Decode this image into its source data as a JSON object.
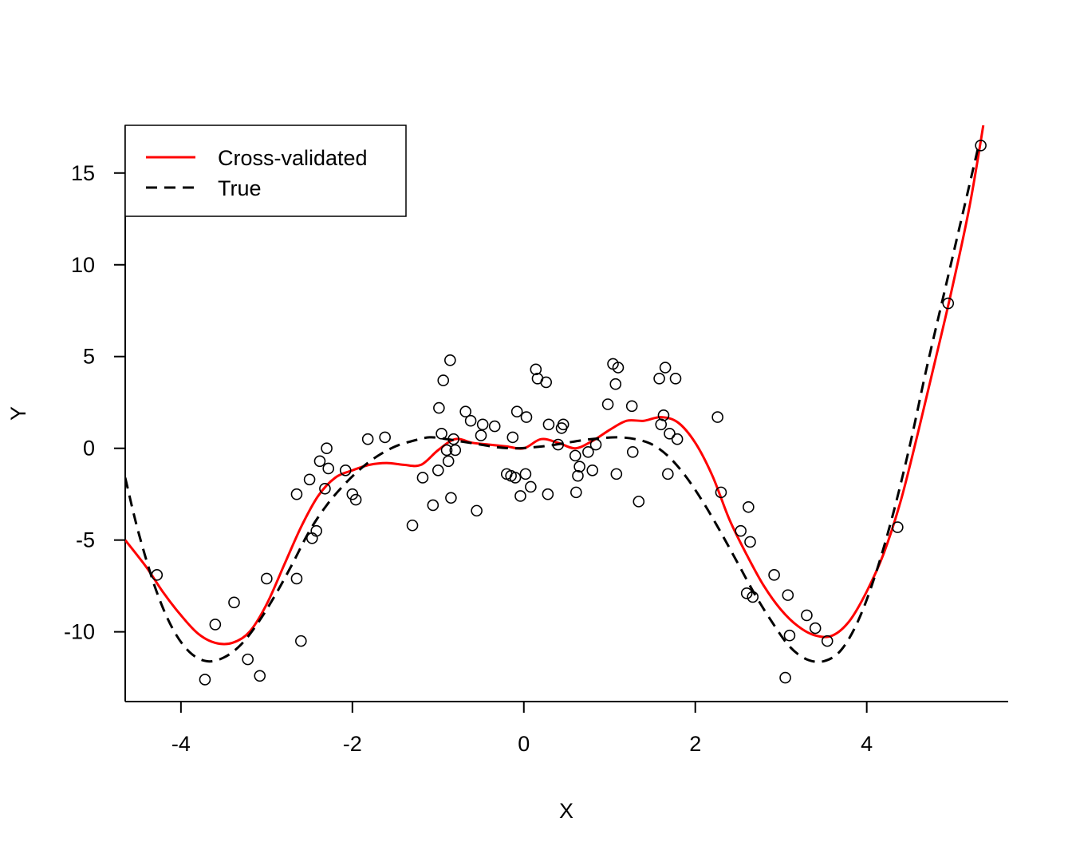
{
  "chart_data": {
    "type": "scatter",
    "title": "",
    "xlabel": "X",
    "ylabel": "Y",
    "xlim": [
      -4.65,
      5.65
    ],
    "ylim": [
      -13.8,
      17.6
    ],
    "xticks": [
      -4,
      -2,
      0,
      2,
      4
    ],
    "xtick_labels": [
      "-4",
      "-2",
      "0",
      "2",
      "4"
    ],
    "yticks": [
      -10,
      -5,
      0,
      5,
      10,
      15
    ],
    "ytick_labels": [
      "-10",
      "-5",
      "0",
      "5",
      "10",
      "15"
    ],
    "grid": false,
    "legend_position": "top-left",
    "series": [
      {
        "name": "Cross-validated",
        "kind": "line",
        "style": "solid",
        "color": "#ff0000",
        "x": [
          -4.65,
          -4.4,
          -4.2,
          -4.0,
          -3.8,
          -3.6,
          -3.4,
          -3.2,
          -3.0,
          -2.8,
          -2.6,
          -2.4,
          -2.2,
          -2.0,
          -1.8,
          -1.6,
          -1.4,
          -1.2,
          -1.0,
          -0.8,
          -0.6,
          -0.4,
          -0.2,
          0.0,
          0.2,
          0.4,
          0.6,
          0.8,
          1.0,
          1.2,
          1.4,
          1.6,
          1.8,
          2.0,
          2.2,
          2.4,
          2.6,
          2.8,
          3.0,
          3.2,
          3.4,
          3.6,
          3.8,
          4.0,
          4.2,
          4.4,
          4.6,
          4.8,
          5.0,
          5.2,
          5.36
        ],
        "y": [
          -5.0,
          -6.5,
          -7.9,
          -9.1,
          -10.1,
          -10.6,
          -10.6,
          -10.0,
          -8.5,
          -6.4,
          -4.3,
          -2.6,
          -1.6,
          -1.2,
          -0.9,
          -0.8,
          -0.9,
          -0.9,
          -0.1,
          0.5,
          0.3,
          0.2,
          0.1,
          0.0,
          0.5,
          0.3,
          0.0,
          0.4,
          1.0,
          1.5,
          1.5,
          1.7,
          1.4,
          0.3,
          -1.5,
          -3.9,
          -5.8,
          -7.5,
          -8.8,
          -9.7,
          -10.2,
          -10.2,
          -9.4,
          -7.8,
          -5.7,
          -2.8,
          0.9,
          4.8,
          8.8,
          13.2,
          17.6
        ]
      },
      {
        "name": "True",
        "kind": "line",
        "style": "dashed",
        "color": "#000000",
        "x": [
          -4.65,
          -4.5,
          -4.3,
          -4.1,
          -3.9,
          -3.7,
          -3.5,
          -3.3,
          -3.1,
          -2.9,
          -2.7,
          -2.5,
          -2.3,
          -2.1,
          -1.9,
          -1.7,
          -1.5,
          -1.3,
          -1.1,
          -0.9,
          -0.7,
          -0.5,
          -0.3,
          -0.1,
          0.1,
          0.3,
          0.5,
          0.7,
          0.9,
          1.1,
          1.3,
          1.5,
          1.7,
          1.9,
          2.1,
          2.3,
          2.5,
          2.7,
          2.9,
          3.1,
          3.3,
          3.5,
          3.7,
          3.9,
          4.1,
          4.3,
          4.5,
          4.7,
          4.9,
          5.1,
          5.3
        ],
        "y": [
          -1.6,
          -4.5,
          -7.6,
          -9.8,
          -11.1,
          -11.6,
          -11.4,
          -10.7,
          -9.5,
          -8.0,
          -6.3,
          -4.5,
          -3.1,
          -2.0,
          -1.1,
          -0.4,
          0.1,
          0.4,
          0.6,
          0.5,
          0.35,
          0.2,
          0.05,
          0.0,
          0.05,
          0.15,
          0.3,
          0.45,
          0.55,
          0.6,
          0.5,
          0.2,
          -0.5,
          -1.6,
          -3.0,
          -4.6,
          -6.3,
          -8.0,
          -9.5,
          -10.8,
          -11.5,
          -11.6,
          -11.0,
          -9.4,
          -6.9,
          -3.7,
          0.1,
          4.4,
          8.4,
          12.4,
          16.4
        ]
      },
      {
        "name": "",
        "kind": "points",
        "color": "#000000",
        "x": [
          -4.28,
          -3.72,
          -3.6,
          -3.38,
          -3.22,
          -3.08,
          -3.0,
          -2.65,
          -2.65,
          -2.6,
          -2.5,
          -2.47,
          -2.42,
          -2.38,
          -2.32,
          -2.3,
          -2.28,
          -2.08,
          -2.0,
          -1.96,
          -1.82,
          -1.62,
          -1.3,
          -1.18,
          -1.06,
          -1.0,
          -0.99,
          -0.96,
          -0.94,
          -0.9,
          -0.88,
          -0.86,
          -0.85,
          -0.82,
          -0.8,
          -0.68,
          -0.62,
          -0.55,
          -0.5,
          -0.48,
          -0.34,
          -0.2,
          -0.15,
          -0.13,
          -0.1,
          -0.08,
          -0.04,
          0.02,
          0.03,
          0.08,
          0.14,
          0.16,
          0.26,
          0.28,
          0.29,
          0.4,
          0.44,
          0.46,
          0.6,
          0.61,
          0.63,
          0.65,
          0.75,
          0.8,
          0.84,
          0.98,
          1.04,
          1.07,
          1.08,
          1.1,
          1.26,
          1.27,
          1.34,
          1.58,
          1.6,
          1.63,
          1.65,
          1.68,
          1.7,
          1.77,
          1.79,
          2.26,
          2.3,
          2.53,
          2.6,
          2.62,
          2.64,
          2.67,
          2.92,
          3.05,
          3.08,
          3.1,
          3.3,
          3.4,
          3.54,
          4.36,
          4.95,
          5.33
        ],
        "y": [
          -6.9,
          -12.6,
          -9.6,
          -8.4,
          -11.5,
          -12.4,
          -7.1,
          -2.5,
          -7.1,
          -10.5,
          -1.7,
          -4.9,
          -4.5,
          -0.7,
          -2.2,
          0.0,
          -1.1,
          -1.2,
          -2.5,
          -2.8,
          0.5,
          0.6,
          -4.2,
          -1.6,
          -3.1,
          -1.2,
          2.2,
          0.8,
          3.7,
          -0.1,
          -0.7,
          4.8,
          -2.7,
          0.5,
          -0.1,
          2.0,
          1.5,
          -3.4,
          0.7,
          1.3,
          1.2,
          -1.4,
          -1.5,
          0.6,
          -1.6,
          2.0,
          -2.6,
          -1.4,
          1.7,
          -2.1,
          4.3,
          3.8,
          3.6,
          -2.5,
          1.3,
          0.2,
          1.1,
          1.3,
          -0.4,
          -2.4,
          -1.5,
          -1.0,
          -0.2,
          -1.2,
          0.2,
          2.4,
          4.6,
          3.5,
          -1.4,
          4.4,
          2.3,
          -0.2,
          -2.9,
          3.8,
          1.3,
          1.8,
          4.4,
          -1.4,
          0.8,
          3.8,
          0.5,
          1.7,
          -2.4,
          -4.5,
          -7.9,
          -3.2,
          -5.1,
          -8.1,
          -6.9,
          -12.5,
          -8.0,
          -10.2,
          -9.1,
          -9.8,
          -10.5,
          -4.3,
          7.9,
          16.5
        ]
      }
    ]
  }
}
